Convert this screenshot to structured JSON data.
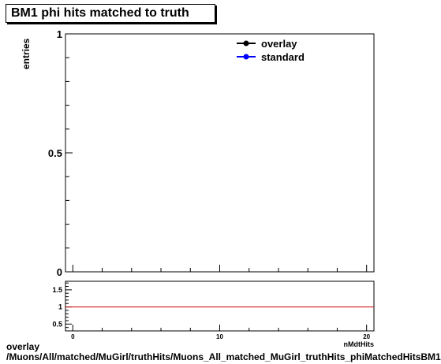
{
  "chart_data": [
    {
      "type": "line",
      "title": "BM1 phi hits matched to truth",
      "ylabel": "entries",
      "xlim": [
        -0.5,
        20.5
      ],
      "ylim": [
        0,
        1
      ],
      "y_ticks": [
        0,
        0.5,
        1
      ],
      "legend_placement": "top-right",
      "series": [
        {
          "name": "overlay",
          "color": "#000000",
          "marker": "circle",
          "values": []
        },
        {
          "name": "standard",
          "color": "#0000ff",
          "marker": "circle",
          "values": []
        }
      ]
    },
    {
      "type": "line",
      "xlim": [
        -0.5,
        20.5
      ],
      "ylim": [
        0.3,
        1.75
      ],
      "x_ticks": [
        0,
        10,
        20
      ],
      "y_ticks": [
        0.5,
        1,
        1.5
      ],
      "reference_line": {
        "y": 1,
        "color": "#cc0000"
      },
      "xlabel": "nMdtHits"
    }
  ],
  "footer": {
    "line1": "overlay",
    "line2": "/Muons/All/matched/MuGirl/truthHits/Muons_All_matched_MuGirl_truthHits_phiMatchedHitsBM1"
  }
}
